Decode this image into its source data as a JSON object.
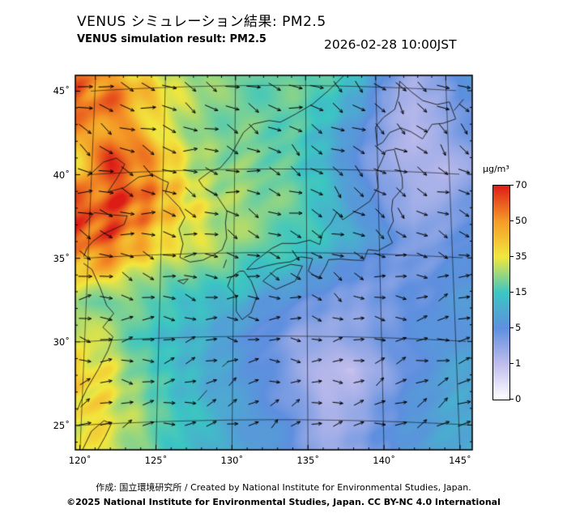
{
  "header": {
    "title_ja": "VENUS シミュレーション結果: PM2.5",
    "title_en": "VENUS simulation result: PM2.5",
    "timestamp": "2026-02-28 10:00JST"
  },
  "axes": {
    "x_tick_labels": [
      "120˚",
      "125˚",
      "130˚",
      "135˚",
      "140˚",
      "145˚"
    ],
    "x_values": [
      120,
      125,
      130,
      135,
      140,
      145
    ],
    "y_tick_labels": [
      "45˚",
      "40˚",
      "35˚",
      "30˚",
      "25˚"
    ],
    "y_values": [
      45,
      40,
      35,
      30,
      25
    ]
  },
  "colorbar": {
    "unit": "µg/m³",
    "ticks": [
      0,
      1,
      5,
      15,
      35,
      50,
      70
    ],
    "colors": [
      "#ffffff",
      "#bfbcec",
      "#5e8fdf",
      "#3cc6c3",
      "#f2e73e",
      "#f59b27",
      "#dd1c17"
    ]
  },
  "chart_data": {
    "type": "heatmap",
    "title": "VENUS simulation result: PM2.5",
    "subtitle_ja": "VENUS シミュレーション結果: PM2.5",
    "valid_time": "2026-02-28 10:00JST",
    "unit": "µg/m³",
    "overlay": "wind vectors",
    "lon_range": [
      119.7,
      145.8
    ],
    "lat_range": [
      23.2,
      45.6
    ],
    "color_levels": [
      0,
      1,
      5,
      15,
      35,
      50,
      70
    ],
    "lons": [
      120,
      122,
      124,
      126,
      128,
      130,
      132,
      134,
      136,
      138,
      140,
      142,
      144,
      146
    ],
    "lats": [
      46,
      44,
      42,
      40,
      38,
      36,
      34,
      32,
      30,
      28,
      26,
      24
    ],
    "values": [
      [
        55,
        48,
        38,
        26,
        22,
        22,
        20,
        20,
        18,
        14,
        5,
        2,
        4,
        8
      ],
      [
        60,
        55,
        45,
        35,
        25,
        22,
        20,
        20,
        16,
        10,
        3,
        1.5,
        3,
        5
      ],
      [
        45,
        58,
        45,
        33,
        24,
        22,
        20,
        18,
        12,
        6,
        3,
        1,
        3,
        4
      ],
      [
        42,
        60,
        55,
        40,
        26,
        24,
        22,
        18,
        12,
        5,
        2.5,
        2,
        1,
        3
      ],
      [
        60,
        65,
        58,
        42,
        33,
        26,
        24,
        20,
        15,
        8,
        4,
        2,
        3,
        4
      ],
      [
        62,
        60,
        48,
        36,
        32,
        25,
        22,
        18,
        14,
        10,
        6,
        3,
        4,
        5
      ],
      [
        45,
        42,
        33,
        26,
        22,
        20,
        14,
        11,
        7,
        5,
        4,
        4,
        5,
        6
      ],
      [
        24,
        22,
        20,
        15,
        13,
        11,
        7,
        5,
        4,
        3,
        4,
        5,
        6,
        7
      ],
      [
        32,
        26,
        16,
        13,
        11,
        7,
        5,
        3,
        2.5,
        3,
        4,
        5,
        6,
        8
      ],
      [
        42,
        33,
        20,
        14,
        11,
        8,
        5,
        3,
        1.5,
        1,
        3,
        5,
        8,
        9
      ],
      [
        40,
        34,
        24,
        15,
        12,
        8,
        6,
        4,
        1.5,
        2,
        4,
        6,
        9,
        10
      ],
      [
        35,
        33,
        25,
        16,
        13,
        10,
        7,
        5,
        2,
        3,
        5,
        7,
        9,
        11
      ]
    ],
    "wind": {
      "lons": [
        120,
        124,
        128,
        132,
        136,
        140,
        144
      ],
      "lats": [
        46,
        42,
        38,
        34,
        30,
        26
      ],
      "u": [
        [
          9,
          9,
          8,
          8,
          7,
          6,
          6
        ],
        [
          9,
          9,
          8,
          7,
          7,
          6,
          5
        ],
        [
          9,
          8,
          8,
          7,
          6,
          6,
          5
        ],
        [
          8,
          7,
          7,
          6,
          5,
          5,
          5
        ],
        [
          6,
          6,
          5,
          5,
          4,
          5,
          6
        ],
        [
          6,
          6,
          5,
          4,
          4,
          5,
          7
        ]
      ],
      "v": [
        [
          -3,
          -4,
          -3,
          -3,
          -4,
          -5,
          -4
        ],
        [
          -4,
          -4,
          -3,
          -3,
          -4,
          -5,
          -4
        ],
        [
          -3,
          -3,
          -2,
          -3,
          -4,
          -4,
          -3
        ],
        [
          -2,
          -2,
          -1,
          -2,
          -3,
          -2,
          0
        ],
        [
          0,
          0,
          1,
          0,
          -1,
          1,
          2
        ],
        [
          2,
          1,
          2,
          2,
          1,
          2,
          3
        ]
      ]
    }
  },
  "footer": {
    "credit": "作成: 国立環境研究所 / Created by National Institute for Environmental Studies, Japan.",
    "copyright": "©2025 National Institute for Environmental Studies, Japan. CC BY-NC 4.0 International"
  }
}
